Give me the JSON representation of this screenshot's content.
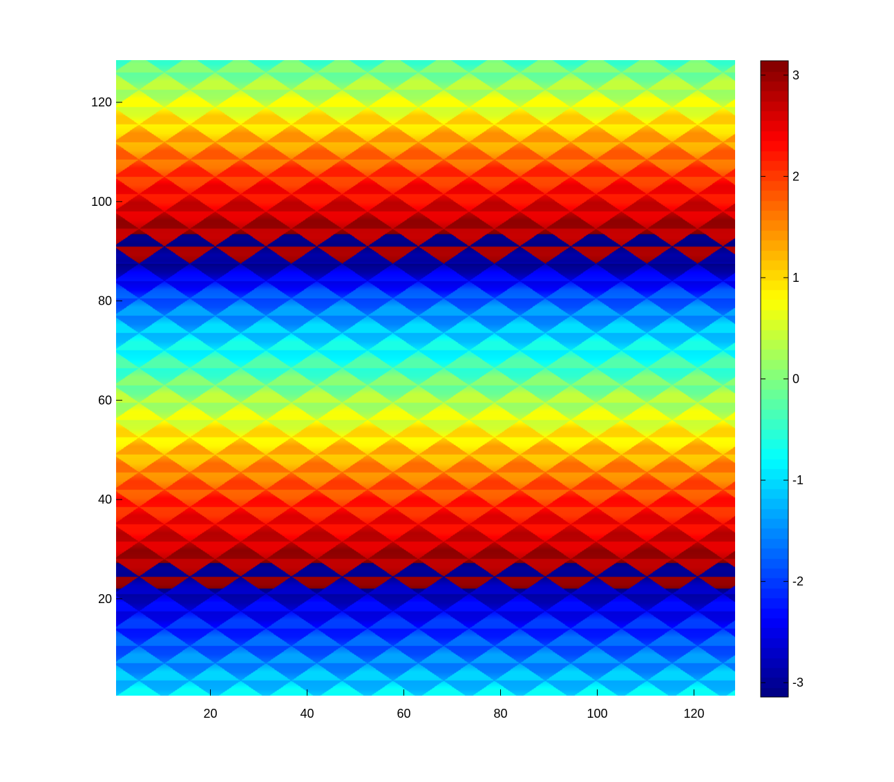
{
  "chart_data": {
    "type": "heatmap",
    "title": "",
    "xlabel": "",
    "ylabel": "",
    "xlim": [
      1,
      128
    ],
    "ylim": [
      1,
      128
    ],
    "clim": [
      -3.1416,
      3.1416
    ],
    "colormap": "jet",
    "grid": false,
    "x_ticks": [
      20,
      40,
      60,
      80,
      100,
      120
    ],
    "x_tick_labels": [
      "20",
      "40",
      "60",
      "80",
      "100",
      "120"
    ],
    "y_ticks": [
      20,
      40,
      60,
      80,
      100,
      120
    ],
    "y_tick_labels": [
      "20",
      "40",
      "60",
      "80",
      "100",
      "120"
    ],
    "colorbar": {
      "ticks": [
        -3,
        -2,
        -1,
        0,
        1,
        2,
        3
      ],
      "tick_labels": [
        "-3",
        "-2",
        "-1",
        "0",
        "1",
        "2",
        "3"
      ]
    },
    "field": {
      "description_of_values": "wrapped phase angle (radians) varying mainly with row index",
      "period_rows": 64,
      "wrap_rows": [
        23,
        88
      ],
      "row_profile": [
        {
          "y": 1,
          "value": -1.0
        },
        {
          "y": 10,
          "value": -1.8
        },
        {
          "y": 20,
          "value": -2.7
        },
        {
          "y": 23,
          "value": -3.1
        },
        {
          "y": 24,
          "value": 3.1
        },
        {
          "y": 30,
          "value": 2.7
        },
        {
          "y": 40,
          "value": 2.0
        },
        {
          "y": 50,
          "value": 1.1
        },
        {
          "y": 60,
          "value": 0.2
        },
        {
          "y": 70,
          "value": -0.8
        },
        {
          "y": 80,
          "value": -1.8
        },
        {
          "y": 87,
          "value": -2.9
        },
        {
          "y": 88,
          "value": 3.1
        },
        {
          "y": 95,
          "value": 2.8
        },
        {
          "y": 105,
          "value": 2.0
        },
        {
          "y": 115,
          "value": 1.0
        },
        {
          "y": 125,
          "value": 0.0
        },
        {
          "y": 128,
          "value": -0.3
        }
      ],
      "ripple_amplitude": 0.35,
      "ripple_period_x": 10.5
    }
  }
}
